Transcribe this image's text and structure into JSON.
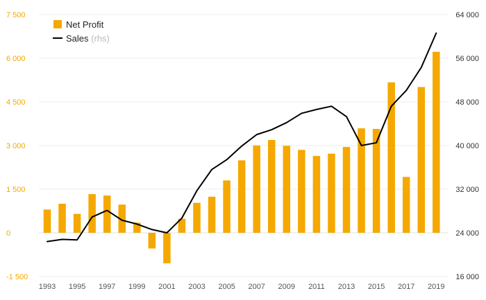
{
  "chart_data": {
    "type": "bar+line",
    "x": [
      1993,
      1994,
      1995,
      1996,
      1997,
      1998,
      1999,
      2000,
      2001,
      2002,
      2003,
      2004,
      2005,
      2006,
      2007,
      2008,
      2009,
      2010,
      2011,
      2012,
      2013,
      2014,
      2015,
      2016,
      2017,
      2018,
      2019
    ],
    "x_tick_labels": [
      "1993",
      "1995",
      "1997",
      "1999",
      "2001",
      "2003",
      "2005",
      "2007",
      "2009",
      "2011",
      "2013",
      "2015",
      "2017",
      "2019"
    ],
    "series": [
      {
        "name": "Net Profit",
        "type": "bar",
        "axis": "left",
        "color": "#f5a800",
        "values": [
          800,
          1000,
          650,
          1330,
          1280,
          970,
          350,
          -540,
          -1050,
          480,
          1030,
          1240,
          1800,
          2490,
          3000,
          3190,
          2990,
          2850,
          2640,
          2720,
          2950,
          3590,
          3570,
          5170,
          1920,
          5010,
          6220
        ]
      },
      {
        "name": "Sales",
        "name_suffix": "(rhs)",
        "type": "line",
        "axis": "right",
        "color": "#000000",
        "values": [
          22400,
          22800,
          22700,
          26900,
          28100,
          26300,
          25600,
          24600,
          24000,
          26700,
          31700,
          35600,
          37400,
          39900,
          42000,
          42900,
          44200,
          45900,
          46600,
          47200,
          45300,
          40000,
          40500,
          47200,
          50100,
          54300,
          60600
        ]
      }
    ],
    "left_axis": {
      "ylim": [
        -1500,
        7500
      ],
      "ticks": [
        -1500,
        0,
        1500,
        3000,
        4500,
        6000,
        7500
      ],
      "tick_labels": [
        "-1 500",
        "0",
        "1 500",
        "3 000",
        "4 500",
        "6 000",
        "7 500"
      ]
    },
    "right_axis": {
      "ylim": [
        16000,
        64000
      ],
      "ticks": [
        16000,
        24000,
        32000,
        40000,
        48000,
        56000,
        64000
      ],
      "tick_labels": [
        "16 000",
        "24 000",
        "32 000",
        "40 000",
        "48 000",
        "56 000",
        "64 000"
      ]
    },
    "grid": true,
    "legend_position": "top-left",
    "title": "",
    "xlabel": "",
    "ylabel": ""
  }
}
